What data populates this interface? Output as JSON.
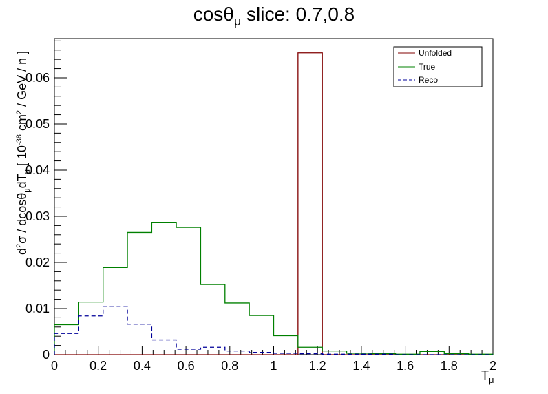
{
  "chart_data": {
    "type": "line",
    "title_main": "cosθ",
    "title_sub": "μ",
    "title_rest": " slice: 0.7,0.8",
    "xlabel_main": "T",
    "xlabel_sub": "μ",
    "ylabel_parts": {
      "a": "d",
      "a_sup": "2",
      "b": "σ / dcosθ",
      "b_sub": "μ",
      "c": "dT",
      "c_sub": "μ",
      "d": " [ 10",
      "d_sup": "-38",
      "e": " cm",
      "e_sup": "2",
      "f": " / GeV / n ]"
    },
    "xlim": [
      0,
      2
    ],
    "ylim": [
      0,
      0.0685
    ],
    "x_ticks": [
      0,
      0.2,
      0.4,
      0.6,
      0.8,
      1,
      1.2,
      1.4,
      1.6,
      1.8,
      2
    ],
    "x_tick_labels": [
      "0",
      "0.2",
      "0.4",
      "0.6",
      "0.8",
      "1",
      "1.2",
      "1.4",
      "1.6",
      "1.8",
      "2"
    ],
    "y_ticks": [
      0,
      0.01,
      0.02,
      0.03,
      0.04,
      0.05,
      0.06
    ],
    "y_tick_labels": [
      "0",
      "0.01",
      "0.02",
      "0.03",
      "0.04",
      "0.05",
      "0.06"
    ],
    "bin_edges": [
      0,
      0.111,
      0.222,
      0.333,
      0.444,
      0.556,
      0.667,
      0.778,
      0.889,
      1.0,
      1.111,
      1.222,
      1.333,
      1.444,
      1.556,
      1.667,
      1.778,
      1.889,
      2.0
    ],
    "legend_position": "top-right",
    "series": [
      {
        "name": "Unfolded",
        "color": "#800000",
        "dashed": false,
        "values": [
          0,
          0,
          0,
          0,
          0,
          0,
          0,
          0,
          0,
          0,
          0.0654,
          0,
          0,
          0,
          0,
          0,
          0,
          0
        ]
      },
      {
        "name": "True",
        "color": "#008000",
        "dashed": false,
        "values": [
          0.0065,
          0.0114,
          0.0189,
          0.0265,
          0.0286,
          0.0276,
          0.0152,
          0.0112,
          0.0085,
          0.0041,
          0.0016,
          0.0008,
          0.0003,
          0.0002,
          0.0001,
          0.0007,
          0.0002,
          0.0001
        ]
      },
      {
        "name": "Reco",
        "color": "#000099",
        "dashed": true,
        "values": [
          0.0046,
          0.0084,
          0.0104,
          0.0066,
          0.0032,
          0.0012,
          0.0016,
          0.0008,
          0.0005,
          0.0003,
          0.0002,
          0.0001,
          0.0001,
          0.0001,
          0,
          0,
          0,
          0
        ]
      }
    ]
  }
}
